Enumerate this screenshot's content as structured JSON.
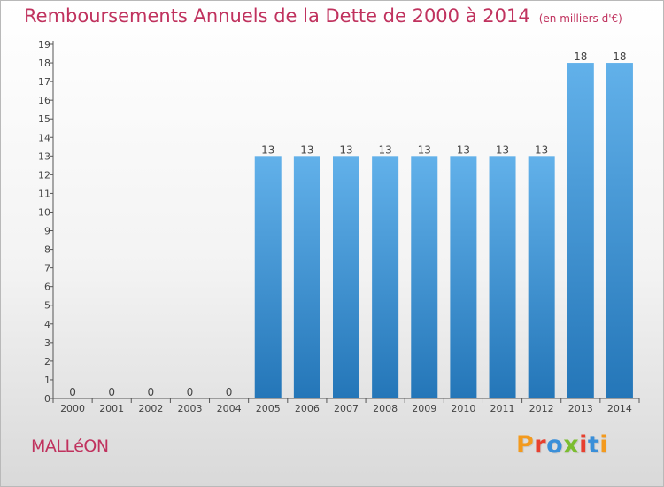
{
  "title": "Remboursements Annuels de la Dette de 2000 à 2014",
  "title_unit": "(en milliers d'€)",
  "city_name": "MALLéON",
  "logo_text": "Proxiti",
  "colors": {
    "title": "#c0325e",
    "bar_top": "#62b1ea",
    "bar_bottom": "#2476b8",
    "axis": "#555555",
    "logo": [
      "#f39a1e",
      "#e7402f",
      "#3a8fd9",
      "#7bbd2f",
      "#e7402f",
      "#3a8fd9",
      "#f39a1e"
    ]
  },
  "chart_data": {
    "type": "bar",
    "title": "Remboursements Annuels de la Dette de 2000 à 2014",
    "xlabel": "",
    "ylabel": "(en milliers d'€)",
    "ylim": [
      0,
      19
    ],
    "yticks": [
      0,
      1,
      2,
      3,
      4,
      5,
      6,
      7,
      8,
      9,
      10,
      11,
      12,
      13,
      14,
      15,
      16,
      17,
      18,
      19
    ],
    "categories": [
      "2000",
      "2001",
      "2002",
      "2003",
      "2004",
      "2005",
      "2006",
      "2007",
      "2008",
      "2009",
      "2010",
      "2011",
      "2012",
      "2013",
      "2014"
    ],
    "values": [
      0,
      0,
      0,
      0,
      0,
      13,
      13,
      13,
      13,
      13,
      13,
      13,
      13,
      18,
      18
    ],
    "data_labels": [
      "0",
      "0",
      "0",
      "0",
      "0",
      "13",
      "13",
      "13",
      "13",
      "13",
      "13",
      "13",
      "13",
      "18",
      "18"
    ],
    "grid": false,
    "legend": "none"
  }
}
